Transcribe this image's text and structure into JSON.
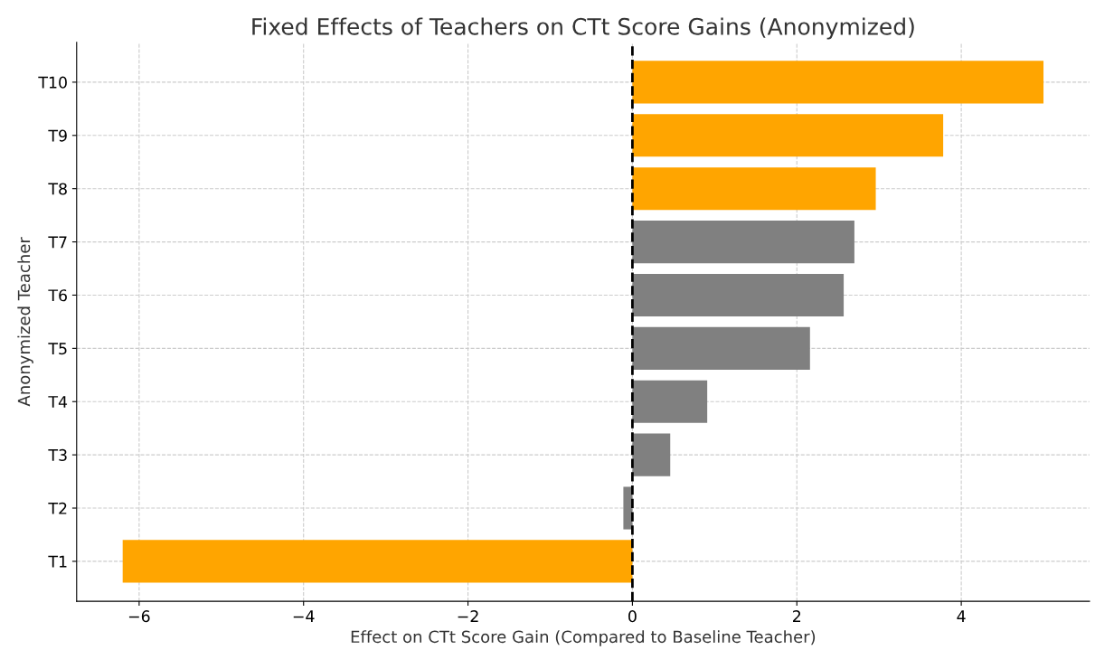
{
  "chart_data": {
    "type": "bar",
    "orientation": "horizontal",
    "title": "Fixed Effects of Teachers on CTt Score Gains (Anonymized)",
    "xlabel": "Effect on CTt Score Gain (Compared to Baseline Teacher)",
    "ylabel": "Anonymized Teacher",
    "categories": [
      "T10",
      "T9",
      "T8",
      "T7",
      "T6",
      "T5",
      "T4",
      "T3",
      "T2",
      "T1"
    ],
    "values": [
      5.0,
      3.78,
      2.96,
      2.7,
      2.57,
      2.16,
      0.91,
      0.46,
      -0.11,
      -6.2
    ],
    "colors": [
      "#ffa500",
      "#ffa500",
      "#ffa500",
      "#808080",
      "#808080",
      "#808080",
      "#808080",
      "#808080",
      "#808080",
      "#ffa500"
    ],
    "xlim": [
      -6.76,
      5.56
    ],
    "xticks": [
      {
        "value": -6,
        "label": "−6"
      },
      {
        "value": -4,
        "label": "−4"
      },
      {
        "value": -2,
        "label": "−2"
      },
      0,
      2,
      4
    ],
    "ref_lines": [
      {
        "axis": "x",
        "value": 0,
        "color": "#000000",
        "line_style": "dashed"
      }
    ],
    "grid": true
  }
}
